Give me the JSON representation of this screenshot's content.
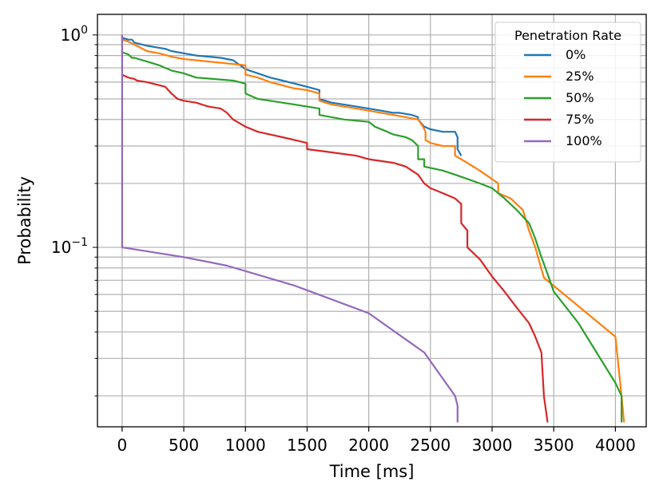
{
  "chart_data": {
    "type": "line",
    "xlabel": "Time [ms]",
    "ylabel": "Probability",
    "xlim": [
      -200,
      4250
    ],
    "ylim": [
      0.0143,
      1.25
    ],
    "yscale": "log",
    "grid": true,
    "x_ticks": [
      0,
      500,
      1000,
      1500,
      2000,
      2500,
      3000,
      3500,
      4000
    ],
    "x_tick_labels": [
      "0",
      "500",
      "1000",
      "1500",
      "2000",
      "2500",
      "3000",
      "3500",
      "4000"
    ],
    "y_ticks": [
      0.1,
      1
    ],
    "y_tick_labels": [
      {
        "base": "10",
        "exp": "−1"
      },
      {
        "base": "10",
        "exp": "0"
      }
    ],
    "legend": {
      "title": "Penetration Rate",
      "position": "top-right"
    },
    "series": [
      {
        "name": "0%",
        "color": "#1f77b4",
        "x": [
          0,
          0,
          50,
          80,
          100,
          200,
          300,
          350,
          400,
          500,
          600,
          800,
          900,
          1000,
          1100,
          1200,
          1300,
          1400,
          1500,
          1600,
          1600,
          1700,
          1800,
          1900,
          2000,
          2100,
          2200,
          2250,
          2350,
          2400,
          2400,
          2450,
          2500,
          2600,
          2700,
          2720,
          2720,
          2750
        ],
        "y": [
          1.0,
          0.97,
          0.95,
          0.95,
          0.92,
          0.89,
          0.87,
          0.86,
          0.84,
          0.82,
          0.8,
          0.78,
          0.76,
          0.69,
          0.66,
          0.63,
          0.61,
          0.59,
          0.57,
          0.55,
          0.5,
          0.48,
          0.47,
          0.46,
          0.45,
          0.44,
          0.43,
          0.43,
          0.42,
          0.41,
          0.4,
          0.37,
          0.36,
          0.35,
          0.35,
          0.33,
          0.29,
          0.27
        ]
      },
      {
        "name": "25%",
        "color": "#ff7f0e",
        "x": [
          0,
          0,
          50,
          100,
          150,
          200,
          300,
          400,
          500,
          700,
          1000,
          1000,
          1100,
          1200,
          1400,
          1500,
          1600,
          1600,
          1700,
          1800,
          1900,
          2000,
          2100,
          2200,
          2300,
          2400,
          2440,
          2460,
          2460,
          2500,
          2600,
          2700,
          2700,
          2750,
          2900,
          3050,
          3050,
          3150,
          3250,
          3300,
          3350,
          3420,
          4000,
          4050,
          4070
        ],
        "y": [
          0.98,
          0.95,
          0.93,
          0.9,
          0.87,
          0.84,
          0.82,
          0.79,
          0.77,
          0.75,
          0.72,
          0.65,
          0.63,
          0.6,
          0.56,
          0.55,
          0.53,
          0.49,
          0.47,
          0.46,
          0.45,
          0.44,
          0.43,
          0.42,
          0.41,
          0.4,
          0.37,
          0.35,
          0.32,
          0.31,
          0.3,
          0.3,
          0.27,
          0.26,
          0.23,
          0.2,
          0.18,
          0.17,
          0.15,
          0.12,
          0.1,
          0.072,
          0.038,
          0.02,
          0.015
        ]
      },
      {
        "name": "50%",
        "color": "#2ca02c",
        "x": [
          0,
          0,
          50,
          80,
          100,
          200,
          300,
          400,
          500,
          600,
          900,
          1000,
          1000,
          1100,
          1200,
          1400,
          1500,
          1600,
          1600,
          1700,
          1800,
          2000,
          2050,
          2150,
          2200,
          2300,
          2350,
          2400,
          2400,
          2450,
          2450,
          2600,
          2700,
          2800,
          2900,
          3000,
          3100,
          3200,
          3300,
          3350,
          3400,
          3450,
          3500,
          3700,
          4000,
          4050,
          4050
        ],
        "y": [
          0.85,
          0.83,
          0.81,
          0.78,
          0.78,
          0.75,
          0.72,
          0.68,
          0.66,
          0.63,
          0.61,
          0.59,
          0.53,
          0.5,
          0.49,
          0.47,
          0.46,
          0.45,
          0.42,
          0.41,
          0.4,
          0.39,
          0.37,
          0.35,
          0.34,
          0.33,
          0.32,
          0.3,
          0.26,
          0.26,
          0.24,
          0.23,
          0.22,
          0.21,
          0.2,
          0.19,
          0.17,
          0.15,
          0.13,
          0.11,
          0.09,
          0.075,
          0.062,
          0.044,
          0.023,
          0.02,
          0.015
        ]
      },
      {
        "name": "75%",
        "color": "#d62728",
        "x": [
          0,
          0,
          50,
          100,
          120,
          200,
          300,
          350,
          400,
          450,
          500,
          600,
          700,
          800,
          850,
          900,
          1000,
          1050,
          1100,
          1200,
          1300,
          1400,
          1500,
          1500,
          1700,
          1900,
          2000,
          2200,
          2300,
          2400,
          2450,
          2500,
          2600,
          2700,
          2750,
          2750,
          2800,
          2800,
          2900,
          3000,
          3100,
          3200,
          3300,
          3350,
          3400,
          3420,
          3450
        ],
        "y": [
          0.65,
          0.65,
          0.63,
          0.62,
          0.61,
          0.6,
          0.58,
          0.57,
          0.53,
          0.5,
          0.49,
          0.48,
          0.46,
          0.45,
          0.43,
          0.4,
          0.37,
          0.36,
          0.35,
          0.34,
          0.33,
          0.32,
          0.31,
          0.29,
          0.28,
          0.27,
          0.26,
          0.25,
          0.24,
          0.22,
          0.2,
          0.19,
          0.18,
          0.17,
          0.16,
          0.13,
          0.12,
          0.1,
          0.088,
          0.073,
          0.062,
          0.052,
          0.044,
          0.038,
          0.032,
          0.02,
          0.015
        ]
      },
      {
        "name": "100%",
        "color": "#9467bd",
        "x": [
          0,
          0,
          0,
          500,
          850,
          1400,
          2000,
          2450,
          2700,
          2720,
          2720
        ],
        "y": [
          1.0,
          0.5,
          0.1,
          0.09,
          0.082,
          0.066,
          0.049,
          0.032,
          0.02,
          0.018,
          0.015
        ]
      }
    ]
  }
}
